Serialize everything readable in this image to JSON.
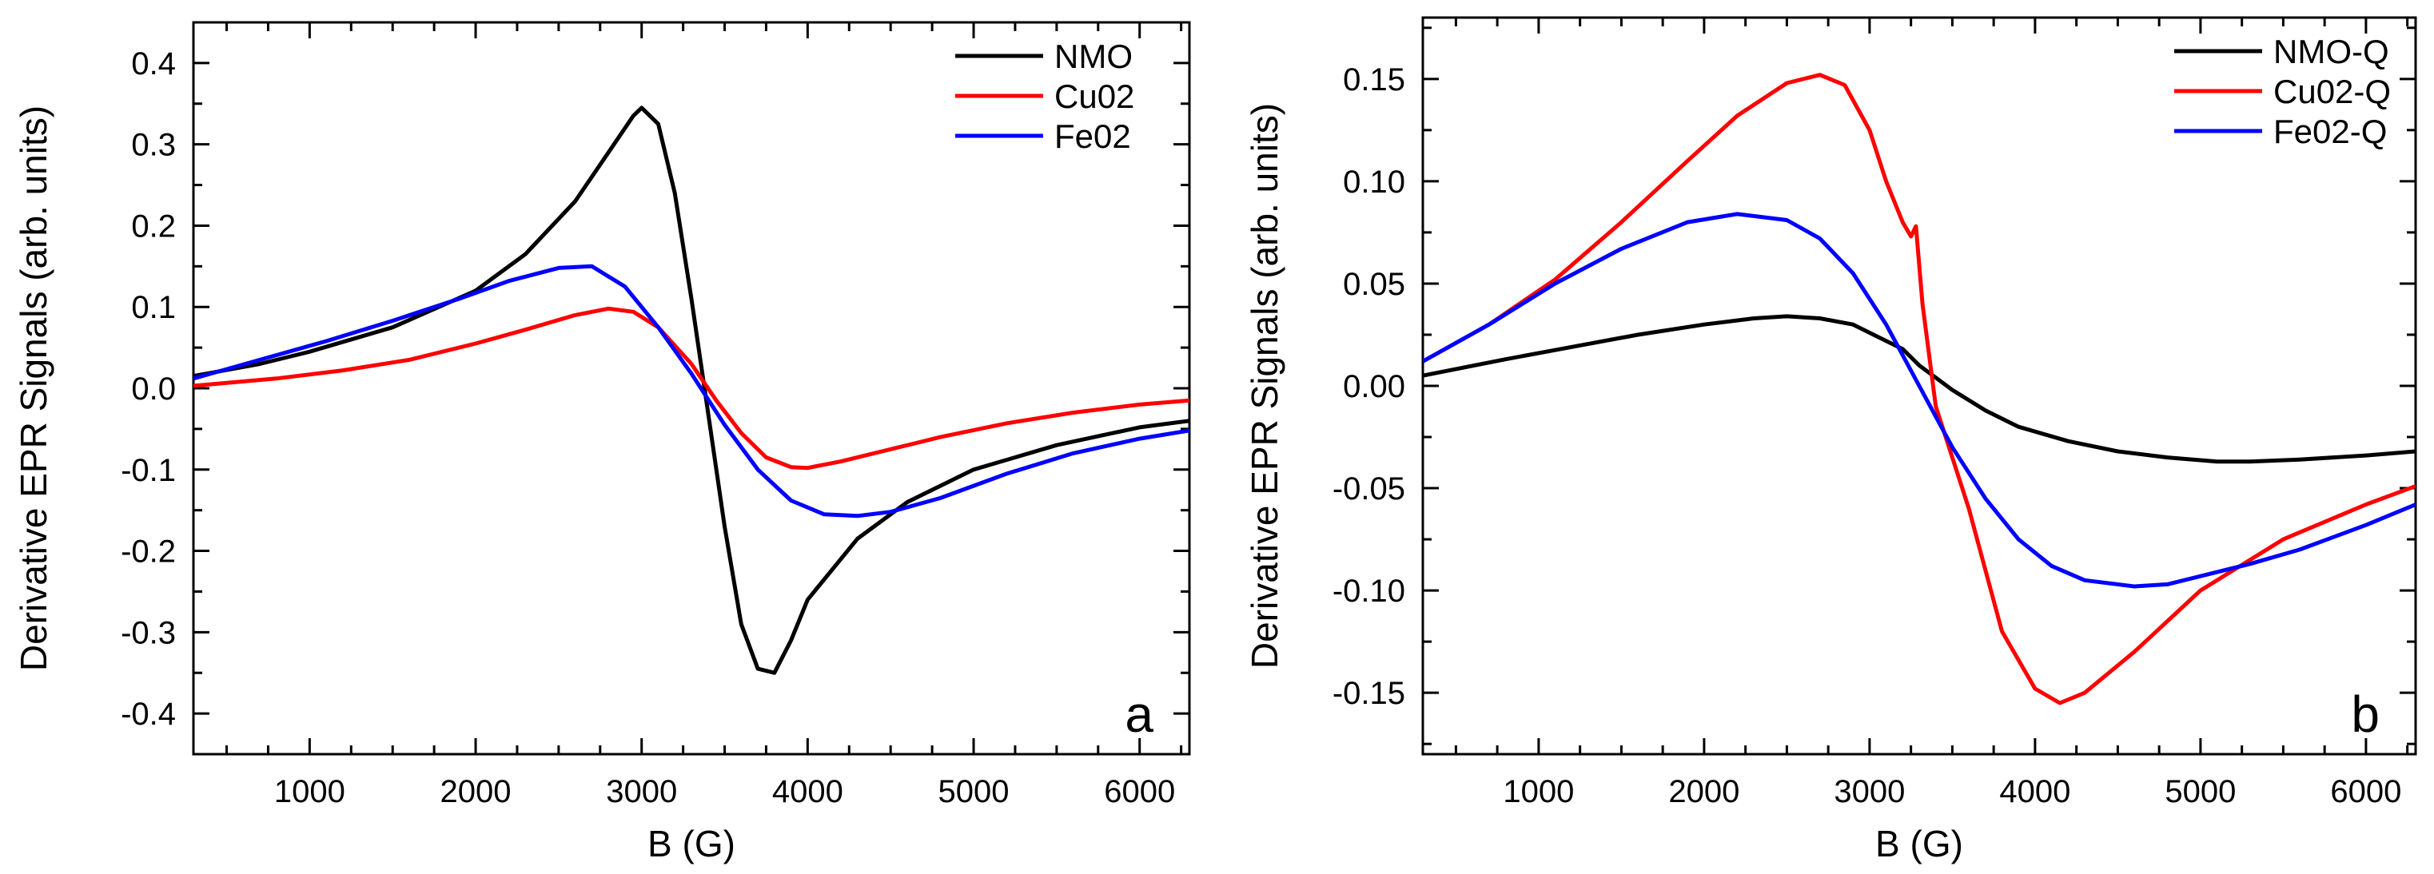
{
  "figure": {
    "description_colors": {
      "black": "#000000",
      "red": "#ff0000",
      "blue": "#0000ff"
    }
  },
  "chart_data": [
    {
      "type": "line",
      "panel_label": "a",
      "xlabel": "B (G)",
      "ylabel": "Derivative EPR Signals (arb. units)",
      "xlim": [
        300,
        6300
      ],
      "ylim": [
        -0.45,
        0.45
      ],
      "xticks": [
        1000,
        2000,
        3000,
        4000,
        5000,
        6000
      ],
      "xtick_labels": [
        "1000",
        "2000",
        "3000",
        "4000",
        "5000",
        "6000"
      ],
      "yticks": [
        -0.4,
        -0.3,
        -0.2,
        -0.1,
        0.0,
        0.1,
        0.2,
        0.3,
        0.4
      ],
      "ytick_labels": [
        "-0.4",
        "-0.3",
        "-0.2",
        "-0.1",
        "0.0",
        "0.1",
        "0.2",
        "0.3",
        "0.4"
      ],
      "legend_position": "top-right",
      "series": [
        {
          "name": "NMO",
          "color": "#000000",
          "x": [
            300,
            700,
            1000,
            1500,
            2000,
            2300,
            2600,
            2800,
            2950,
            3000,
            3100,
            3200,
            3300,
            3400,
            3500,
            3600,
            3700,
            3800,
            3900,
            4000,
            4300,
            4600,
            5000,
            5500,
            6000,
            6300
          ],
          "y": [
            0.015,
            0.03,
            0.045,
            0.075,
            0.12,
            0.165,
            0.23,
            0.29,
            0.335,
            0.345,
            0.325,
            0.24,
            0.11,
            -0.03,
            -0.17,
            -0.29,
            -0.345,
            -0.35,
            -0.31,
            -0.26,
            -0.185,
            -0.14,
            -0.1,
            -0.07,
            -0.048,
            -0.04
          ]
        },
        {
          "name": "Cu02",
          "color": "#ff0000",
          "x": [
            300,
            800,
            1200,
            1600,
            2000,
            2300,
            2600,
            2800,
            2950,
            3100,
            3300,
            3450,
            3600,
            3750,
            3900,
            4000,
            4200,
            4500,
            4800,
            5200,
            5600,
            6000,
            6300
          ],
          "y": [
            0.003,
            0.012,
            0.022,
            0.035,
            0.055,
            0.072,
            0.09,
            0.098,
            0.094,
            0.075,
            0.03,
            -0.015,
            -0.055,
            -0.085,
            -0.097,
            -0.098,
            -0.09,
            -0.075,
            -0.06,
            -0.043,
            -0.03,
            -0.02,
            -0.015
          ]
        },
        {
          "name": "Fe02",
          "color": "#0000ff",
          "x": [
            300,
            700,
            1100,
            1500,
            1900,
            2200,
            2500,
            2700,
            2900,
            3100,
            3300,
            3500,
            3700,
            3900,
            4100,
            4300,
            4500,
            4800,
            5200,
            5600,
            6000,
            6300
          ],
          "y": [
            0.012,
            0.035,
            0.058,
            0.083,
            0.11,
            0.132,
            0.148,
            0.15,
            0.125,
            0.075,
            0.018,
            -0.045,
            -0.1,
            -0.138,
            -0.155,
            -0.157,
            -0.152,
            -0.135,
            -0.105,
            -0.08,
            -0.062,
            -0.052
          ]
        }
      ]
    },
    {
      "type": "line",
      "panel_label": "b",
      "xlabel": "B (G)",
      "ylabel": "Derivative EPR Signals (arb. units)",
      "xlim": [
        300,
        6300
      ],
      "ylim": [
        -0.18,
        0.18
      ],
      "xticks": [
        1000,
        2000,
        3000,
        4000,
        5000,
        6000
      ],
      "xtick_labels": [
        "1000",
        "2000",
        "3000",
        "4000",
        "5000",
        "6000"
      ],
      "yticks": [
        -0.15,
        -0.1,
        -0.05,
        0.0,
        0.05,
        0.1,
        0.15
      ],
      "ytick_labels": [
        "-0.15",
        "-0.10",
        "-0.05",
        "0.00",
        "0.05",
        "0.10",
        "0.15"
      ],
      "legend_position": "top-right",
      "series": [
        {
          "name": "NMO-Q",
          "color": "#000000",
          "x": [
            300,
            800,
            1200,
            1600,
            2000,
            2300,
            2500,
            2700,
            2900,
            3100,
            3200,
            3300,
            3500,
            3700,
            3900,
            4200,
            4500,
            4800,
            5100,
            5300,
            5600,
            6000,
            6300
          ],
          "y": [
            0.005,
            0.013,
            0.019,
            0.025,
            0.03,
            0.033,
            0.034,
            0.033,
            0.03,
            0.022,
            0.018,
            0.01,
            -0.002,
            -0.012,
            -0.02,
            -0.027,
            -0.032,
            -0.035,
            -0.037,
            -0.037,
            -0.036,
            -0.034,
            -0.032
          ]
        },
        {
          "name": "Cu02-Q",
          "color": "#ff0000",
          "x": [
            300,
            700,
            1100,
            1500,
            1900,
            2200,
            2500,
            2700,
            2850,
            3000,
            3100,
            3200,
            3250,
            3280,
            3320,
            3400,
            3600,
            3800,
            4000,
            4150,
            4300,
            4600,
            5000,
            5500,
            6000,
            6300
          ],
          "y": [
            0.012,
            0.03,
            0.052,
            0.08,
            0.11,
            0.132,
            0.148,
            0.152,
            0.147,
            0.125,
            0.1,
            0.08,
            0.073,
            0.078,
            0.04,
            -0.01,
            -0.06,
            -0.12,
            -0.148,
            -0.155,
            -0.15,
            -0.13,
            -0.1,
            -0.075,
            -0.058,
            -0.049
          ]
        },
        {
          "name": "Fe02-Q",
          "color": "#0000ff",
          "x": [
            300,
            700,
            1100,
            1500,
            1900,
            2200,
            2500,
            2700,
            2900,
            3100,
            3300,
            3500,
            3700,
            3900,
            4100,
            4300,
            4600,
            4800,
            5000,
            5300,
            5600,
            6000,
            6300
          ],
          "y": [
            0.012,
            0.03,
            0.05,
            0.067,
            0.08,
            0.084,
            0.081,
            0.072,
            0.055,
            0.03,
            0.0,
            -0.03,
            -0.055,
            -0.075,
            -0.088,
            -0.095,
            -0.098,
            -0.097,
            -0.093,
            -0.087,
            -0.08,
            -0.068,
            -0.058
          ]
        }
      ]
    }
  ]
}
